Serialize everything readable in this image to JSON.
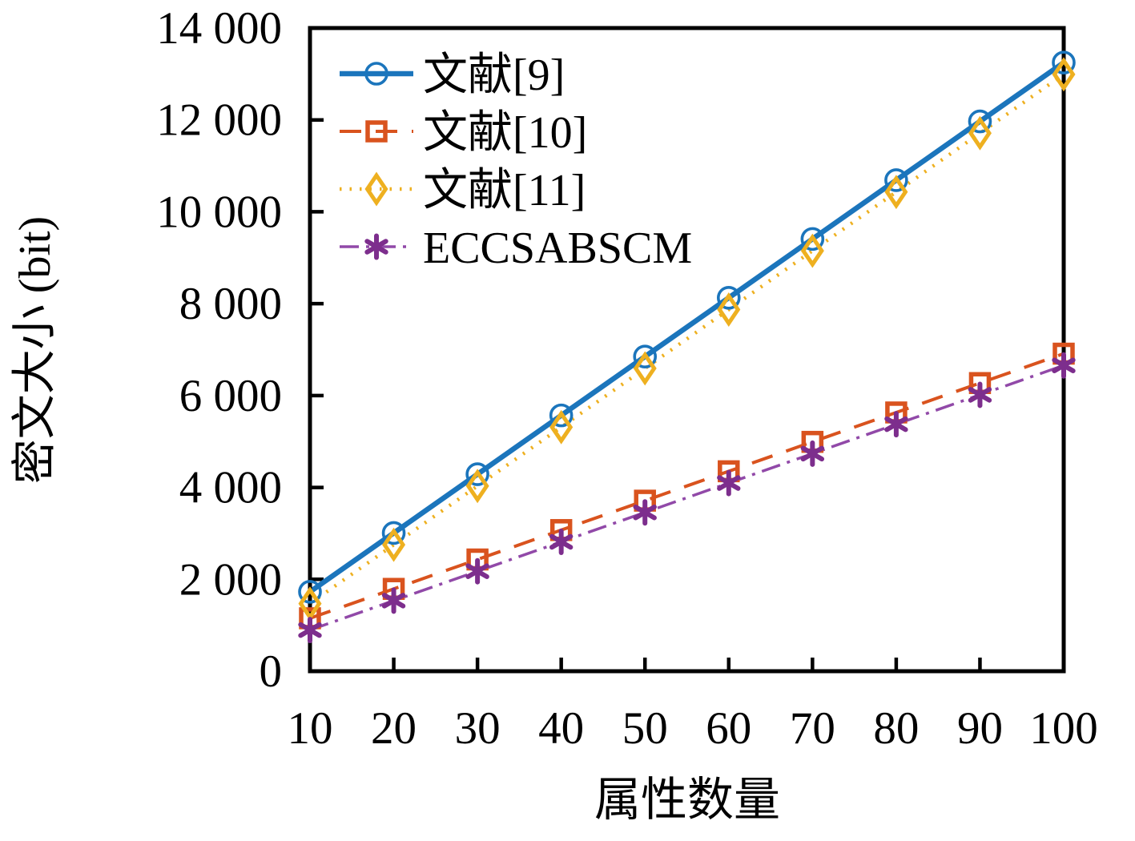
{
  "figure": {
    "background": "#ffffff",
    "border_color": "#000000"
  },
  "chart_data": {
    "type": "line",
    "title": "",
    "xlabel": "属性数量",
    "ylabel": "密文大小 (bit)",
    "xlim": [
      10,
      100
    ],
    "ylim": [
      0,
      14000
    ],
    "grid": false,
    "legend_position": "top-left-inside",
    "x": [
      10,
      20,
      30,
      40,
      50,
      60,
      70,
      80,
      90,
      100
    ],
    "x_tick_labels": [
      "10",
      "20",
      "30",
      "40",
      "50",
      "60",
      "70",
      "80",
      "90",
      "100"
    ],
    "y_ticks": [
      0,
      2000,
      4000,
      6000,
      8000,
      10000,
      12000,
      14000
    ],
    "y_tick_labels": [
      "0",
      "2 000",
      "4 000",
      "6 000",
      "8 000",
      "10 000",
      "12 000",
      "14 000"
    ],
    "series": [
      {
        "name": "文献[9]",
        "color": "#1b75bc",
        "marker_color": "#1b75bc",
        "line_style": "solid",
        "marker": "circle",
        "values": [
          1728,
          3008,
          4288,
          5568,
          6848,
          8128,
          9408,
          10688,
          11968,
          13248
        ]
      },
      {
        "name": "文献[10]",
        "color": "#d9531e",
        "marker_color": "#d9531e",
        "line_style": "dashed",
        "marker": "square",
        "values": [
          1152,
          1792,
          2432,
          3072,
          3712,
          4352,
          4992,
          5632,
          6272,
          6912
        ]
      },
      {
        "name": "文献[11]",
        "color": "#eeb020",
        "marker_color": "#eeb020",
        "line_style": "dotted",
        "marker": "diamond",
        "values": [
          1472,
          2752,
          4032,
          5312,
          6592,
          7872,
          9152,
          10432,
          11712,
          12992
        ]
      },
      {
        "name": "ECCSABSCM",
        "color": "#9149a8",
        "marker_color": "#7d2e8d",
        "line_style": "dashdot",
        "marker": "asterisk",
        "values": [
          896,
          1536,
          2176,
          2816,
          3456,
          4096,
          4736,
          5376,
          6016,
          6656
        ]
      }
    ]
  }
}
